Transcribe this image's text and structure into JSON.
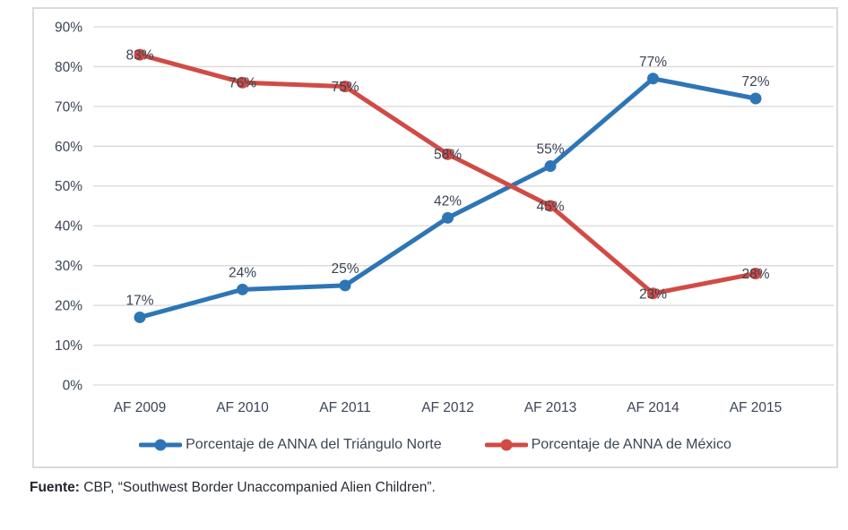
{
  "chart_data": {
    "type": "line",
    "categories": [
      "AF 2009",
      "AF 2010",
      "AF 2011",
      "AF 2012",
      "AF 2013",
      "AF 2014",
      "AF 2015"
    ],
    "series": [
      {
        "name": "Porcentaje de ANNA del Triángulo Norte",
        "color": "#2E75B5",
        "values": [
          17,
          24,
          25,
          42,
          55,
          77,
          72
        ],
        "data_labels": [
          "17%",
          "24%",
          "25%",
          "42%",
          "55%",
          "77%",
          "72%"
        ],
        "label_placement": "above"
      },
      {
        "name": "Porcentaje de ANNA de México",
        "color": "#D14B45",
        "values": [
          83,
          76,
          75,
          58,
          45,
          23,
          28
        ],
        "data_labels": [
          "83%",
          "76%",
          "75%",
          "58%",
          "45%",
          "23%",
          "28%"
        ],
        "label_placement": "on-point"
      }
    ],
    "ylim": [
      0,
      90
    ],
    "ytick_step": 10,
    "ytick_labels": [
      "0%",
      "10%",
      "20%",
      "30%",
      "40%",
      "50%",
      "60%",
      "70%",
      "80%",
      "90%"
    ],
    "xlabel": "",
    "ylabel": "",
    "title": "",
    "grid": true,
    "legend_position": "bottom",
    "text_color": "#3c4555",
    "grid_color": "#d9d9d9"
  },
  "source": {
    "prefix": "Fuente:",
    "text": " CBP, “Southwest Border Unaccompanied Alien Children”."
  }
}
